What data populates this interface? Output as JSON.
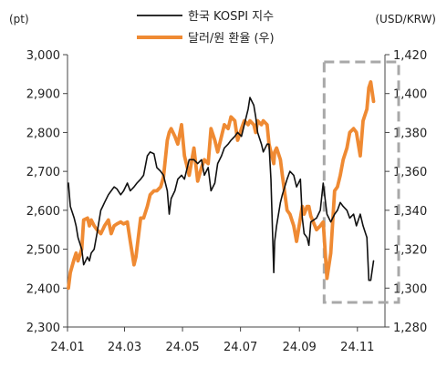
{
  "chart_data": {
    "type": "line",
    "legend": {
      "placement": "top-center",
      "entries": [
        "한국 KOSPI 지수",
        "달러/원 환율 (우)"
      ]
    },
    "left_unit": "(pt)",
    "right_unit": "(USD/KRW)",
    "xlim": [
      "2024-01-01",
      "2024-11-30"
    ],
    "x_tick_labels": [
      "24.01",
      "24.03",
      "24.05",
      "24.07",
      "24.09",
      "24.11"
    ],
    "x_tick_dates": [
      "2024-01-01",
      "2024-03-01",
      "2024-05-01",
      "2024-07-01",
      "2024-09-01",
      "2024-11-01"
    ],
    "y_left": {
      "min": 2300,
      "max": 3000,
      "ticks": [
        2300,
        2400,
        2500,
        2600,
        2700,
        2800,
        2900,
        3000
      ],
      "tick_labels": [
        "2,300",
        "2,400",
        "2,500",
        "2,600",
        "2,700",
        "2,800",
        "2,900",
        "3,000"
      ]
    },
    "y_right": {
      "min": 1280,
      "max": 1420,
      "ticks": [
        1280,
        1300,
        1320,
        1340,
        1360,
        1380,
        1400,
        1420
      ],
      "tick_labels": [
        "1,280",
        "1,300",
        "1,320",
        "1,340",
        "1,360",
        "1,380",
        "1,400",
        "1,420"
      ]
    },
    "grid": false,
    "series": [
      {
        "name": "한국 KOSPI 지수",
        "axis": "left",
        "color": "#111111",
        "points": [
          [
            "2024-01-02",
            2670
          ],
          [
            "2024-01-04",
            2610
          ],
          [
            "2024-01-08",
            2580
          ],
          [
            "2024-01-10",
            2560
          ],
          [
            "2024-01-12",
            2530
          ],
          [
            "2024-01-16",
            2500
          ],
          [
            "2024-01-18",
            2460
          ],
          [
            "2024-01-22",
            2480
          ],
          [
            "2024-01-24",
            2470
          ],
          [
            "2024-01-26",
            2490
          ],
          [
            "2024-01-29",
            2500
          ],
          [
            "2024-02-01",
            2540
          ],
          [
            "2024-02-05",
            2600
          ],
          [
            "2024-02-07",
            2610
          ],
          [
            "2024-02-09",
            2620
          ],
          [
            "2024-02-13",
            2640
          ],
          [
            "2024-02-16",
            2650
          ],
          [
            "2024-02-19",
            2660
          ],
          [
            "2024-02-22",
            2655
          ],
          [
            "2024-02-26",
            2640
          ],
          [
            "2024-02-29",
            2650
          ],
          [
            "2024-03-04",
            2670
          ],
          [
            "2024-03-07",
            2650
          ],
          [
            "2024-03-11",
            2660
          ],
          [
            "2024-03-14",
            2670
          ],
          [
            "2024-03-18",
            2680
          ],
          [
            "2024-03-21",
            2690
          ],
          [
            "2024-03-25",
            2740
          ],
          [
            "2024-03-28",
            2750
          ],
          [
            "2024-04-01",
            2745
          ],
          [
            "2024-04-04",
            2710
          ],
          [
            "2024-04-08",
            2700
          ],
          [
            "2024-04-11",
            2690
          ],
          [
            "2024-04-15",
            2650
          ],
          [
            "2024-04-17",
            2590
          ],
          [
            "2024-04-19",
            2630
          ],
          [
            "2024-04-23",
            2650
          ],
          [
            "2024-04-26",
            2680
          ],
          [
            "2024-04-30",
            2690
          ],
          [
            "2024-05-03",
            2680
          ],
          [
            "2024-05-08",
            2730
          ],
          [
            "2024-05-13",
            2730
          ],
          [
            "2024-05-17",
            2720
          ],
          [
            "2024-05-21",
            2730
          ],
          [
            "2024-05-24",
            2690
          ],
          [
            "2024-05-28",
            2710
          ],
          [
            "2024-05-31",
            2650
          ],
          [
            "2024-06-04",
            2670
          ],
          [
            "2024-06-07",
            2720
          ],
          [
            "2024-06-11",
            2740
          ],
          [
            "2024-06-14",
            2760
          ],
          [
            "2024-06-18",
            2770
          ],
          [
            "2024-06-21",
            2780
          ],
          [
            "2024-06-25",
            2790
          ],
          [
            "2024-06-28",
            2800
          ],
          [
            "2024-07-02",
            2790
          ],
          [
            "2024-07-05",
            2820
          ],
          [
            "2024-07-09",
            2860
          ],
          [
            "2024-07-11",
            2890
          ],
          [
            "2024-07-15",
            2870
          ],
          [
            "2024-07-17",
            2840
          ],
          [
            "2024-07-19",
            2800
          ],
          [
            "2024-07-23",
            2770
          ],
          [
            "2024-07-25",
            2750
          ],
          [
            "2024-07-29",
            2770
          ],
          [
            "2024-07-31",
            2770
          ],
          [
            "2024-08-02",
            2680
          ],
          [
            "2024-08-05",
            2440
          ],
          [
            "2024-08-06",
            2520
          ],
          [
            "2024-08-08",
            2560
          ],
          [
            "2024-08-12",
            2620
          ],
          [
            "2024-08-14",
            2640
          ],
          [
            "2024-08-19",
            2680
          ],
          [
            "2024-08-22",
            2700
          ],
          [
            "2024-08-26",
            2690
          ],
          [
            "2024-08-29",
            2660
          ],
          [
            "2024-09-02",
            2680
          ],
          [
            "2024-09-04",
            2580
          ],
          [
            "2024-09-06",
            2540
          ],
          [
            "2024-09-09",
            2530
          ],
          [
            "2024-09-11",
            2510
          ],
          [
            "2024-09-13",
            2570
          ],
          [
            "2024-09-19",
            2580
          ],
          [
            "2024-09-23",
            2600
          ],
          [
            "2024-09-26",
            2670
          ],
          [
            "2024-09-30",
            2590
          ],
          [
            "2024-10-04",
            2570
          ],
          [
            "2024-10-08",
            2590
          ],
          [
            "2024-10-11",
            2600
          ],
          [
            "2024-10-14",
            2620
          ],
          [
            "2024-10-17",
            2610
          ],
          [
            "2024-10-21",
            2600
          ],
          [
            "2024-10-24",
            2580
          ],
          [
            "2024-10-28",
            2590
          ],
          [
            "2024-10-31",
            2560
          ],
          [
            "2024-11-04",
            2590
          ],
          [
            "2024-11-07",
            2560
          ],
          [
            "2024-11-11",
            2530
          ],
          [
            "2024-11-13",
            2420
          ],
          [
            "2024-11-15",
            2420
          ],
          [
            "2024-11-18",
            2470
          ]
        ]
      },
      {
        "name": "달러/원 환율 (우)",
        "axis": "right",
        "color": "#ef8a33",
        "points": [
          [
            "2024-01-02",
            1300
          ],
          [
            "2024-01-04",
            1308
          ],
          [
            "2024-01-08",
            1315
          ],
          [
            "2024-01-10",
            1318
          ],
          [
            "2024-01-12",
            1314
          ],
          [
            "2024-01-16",
            1320
          ],
          [
            "2024-01-18",
            1335
          ],
          [
            "2024-01-22",
            1336
          ],
          [
            "2024-01-24",
            1332
          ],
          [
            "2024-01-26",
            1335
          ],
          [
            "2024-01-29",
            1332
          ],
          [
            "2024-02-01",
            1330
          ],
          [
            "2024-02-05",
            1328
          ],
          [
            "2024-02-07",
            1330
          ],
          [
            "2024-02-09",
            1332
          ],
          [
            "2024-02-13",
            1335
          ],
          [
            "2024-02-16",
            1328
          ],
          [
            "2024-02-19",
            1332
          ],
          [
            "2024-02-22",
            1333
          ],
          [
            "2024-02-26",
            1334
          ],
          [
            "2024-02-29",
            1333
          ],
          [
            "2024-03-04",
            1334
          ],
          [
            "2024-03-07",
            1324
          ],
          [
            "2024-03-11",
            1312
          ],
          [
            "2024-03-13",
            1316
          ],
          [
            "2024-03-18",
            1336
          ],
          [
            "2024-03-21",
            1336
          ],
          [
            "2024-03-25",
            1342
          ],
          [
            "2024-03-28",
            1348
          ],
          [
            "2024-04-01",
            1350
          ],
          [
            "2024-04-04",
            1350
          ],
          [
            "2024-04-08",
            1352
          ],
          [
            "2024-04-11",
            1357
          ],
          [
            "2024-04-15",
            1376
          ],
          [
            "2024-04-17",
            1380
          ],
          [
            "2024-04-19",
            1382
          ],
          [
            "2024-04-23",
            1378
          ],
          [
            "2024-04-26",
            1374
          ],
          [
            "2024-04-30",
            1384
          ],
          [
            "2024-05-03",
            1368
          ],
          [
            "2024-05-08",
            1358
          ],
          [
            "2024-05-13",
            1372
          ],
          [
            "2024-05-17",
            1355
          ],
          [
            "2024-05-21",
            1362
          ],
          [
            "2024-05-24",
            1366
          ],
          [
            "2024-05-28",
            1364
          ],
          [
            "2024-05-31",
            1382
          ],
          [
            "2024-06-04",
            1376
          ],
          [
            "2024-06-07",
            1370
          ],
          [
            "2024-06-11",
            1378
          ],
          [
            "2024-06-14",
            1384
          ],
          [
            "2024-06-18",
            1382
          ],
          [
            "2024-06-21",
            1388
          ],
          [
            "2024-06-25",
            1386
          ],
          [
            "2024-06-28",
            1376
          ],
          [
            "2024-07-02",
            1382
          ],
          [
            "2024-07-05",
            1386
          ],
          [
            "2024-07-09",
            1384
          ],
          [
            "2024-07-11",
            1386
          ],
          [
            "2024-07-15",
            1384
          ],
          [
            "2024-07-17",
            1380
          ],
          [
            "2024-07-19",
            1386
          ],
          [
            "2024-07-23",
            1384
          ],
          [
            "2024-07-25",
            1386
          ],
          [
            "2024-07-29",
            1384
          ],
          [
            "2024-07-31",
            1374
          ],
          [
            "2024-08-02",
            1370
          ],
          [
            "2024-08-05",
            1364
          ],
          [
            "2024-08-06",
            1370
          ],
          [
            "2024-08-08",
            1372
          ],
          [
            "2024-08-12",
            1366
          ],
          [
            "2024-08-14",
            1358
          ],
          [
            "2024-08-19",
            1340
          ],
          [
            "2024-08-22",
            1338
          ],
          [
            "2024-08-26",
            1332
          ],
          [
            "2024-08-29",
            1324
          ],
          [
            "2024-09-02",
            1336
          ],
          [
            "2024-09-04",
            1342
          ],
          [
            "2024-09-06",
            1338
          ],
          [
            "2024-09-09",
            1342
          ],
          [
            "2024-09-11",
            1342
          ],
          [
            "2024-09-13",
            1337
          ],
          [
            "2024-09-19",
            1330
          ],
          [
            "2024-09-23",
            1332
          ],
          [
            "2024-09-26",
            1334
          ],
          [
            "2024-09-30",
            1305
          ],
          [
            "2024-10-04",
            1318
          ],
          [
            "2024-10-08",
            1350
          ],
          [
            "2024-10-11",
            1352
          ],
          [
            "2024-10-14",
            1358
          ],
          [
            "2024-10-17",
            1366
          ],
          [
            "2024-10-21",
            1372
          ],
          [
            "2024-10-24",
            1380
          ],
          [
            "2024-10-28",
            1382
          ],
          [
            "2024-10-31",
            1380
          ],
          [
            "2024-11-04",
            1368
          ],
          [
            "2024-11-07",
            1386
          ],
          [
            "2024-11-11",
            1392
          ],
          [
            "2024-11-13",
            1403
          ],
          [
            "2024-11-15",
            1406
          ],
          [
            "2024-11-18",
            1396
          ]
        ]
      }
    ],
    "highlight": {
      "style": "dashed-box",
      "color": "#a8a8a8",
      "x_range": [
        "2024-09-27",
        "2024-11-30"
      ]
    }
  }
}
